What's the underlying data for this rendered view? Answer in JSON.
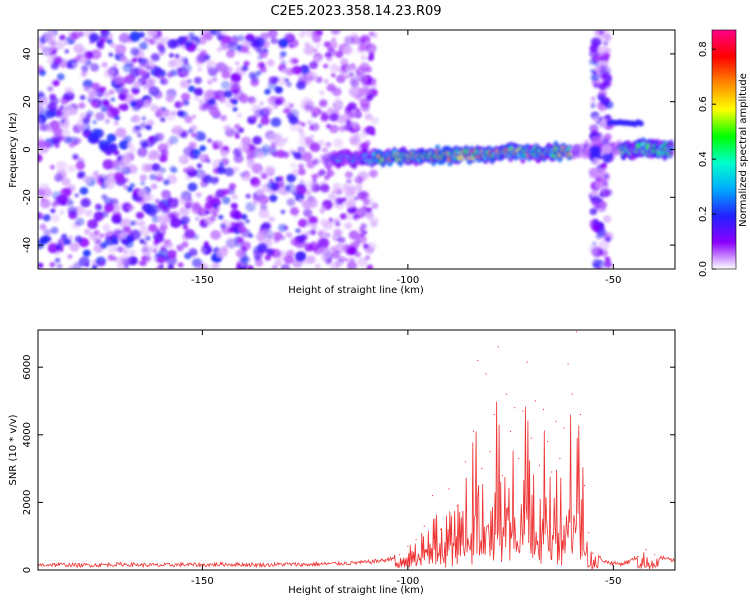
{
  "figure_title": "C2E5.2023.358.14.23.R09",
  "chart_data": [
    {
      "type": "heatmap",
      "xlabel": "Height of straight line (km)",
      "ylabel": "Frequency (Hz)",
      "xlim": [
        -190,
        -35
      ],
      "ylim": [
        -50,
        50
      ],
      "xticks": [
        -150,
        -100,
        -50
      ],
      "yticks": [
        -40,
        -20,
        0,
        20,
        40
      ],
      "colorbar": {
        "label": "Normalized spectral amplitude",
        "range": [
          0,
          0.87
        ],
        "ticks": [
          0.0,
          0.2,
          0.4,
          0.6,
          0.8
        ],
        "colormap": [
          "#ffffff",
          "#8b00ff",
          "#2222ff",
          "#00aaff",
          "#00ffcc",
          "#00ff00",
          "#ffff00",
          "#ff8800",
          "#ff0000",
          "#ff0088"
        ]
      },
      "features": [
        {
          "kind": "noise",
          "x_range": [
            -190,
            -108
          ],
          "y_range": [
            -50,
            50
          ],
          "level": 0.15
        },
        {
          "kind": "band",
          "x_range": [
            -120,
            -36
          ],
          "freq_hz": -3,
          "level": 0.45
        },
        {
          "kind": "band",
          "x_range": [
            -48,
            -36
          ],
          "freq_hz": 0,
          "level": 0.35
        },
        {
          "kind": "vertical_strip",
          "x_range": [
            -55,
            -51
          ],
          "y_range": [
            -50,
            50
          ],
          "level": 0.15
        },
        {
          "kind": "blob",
          "x": -47,
          "freq_hz": 11,
          "level": 0.18
        }
      ]
    },
    {
      "type": "line",
      "xlabel": "Height of straight line (km)",
      "ylabel": "SNR (10 * v/v)",
      "xlim": [
        -190,
        -35
      ],
      "ylim": [
        0,
        7100
      ],
      "xticks": [
        -150,
        -100,
        -50
      ],
      "yticks": [
        0,
        2000,
        4000,
        6000
      ],
      "color": "#ee3333",
      "x": [
        -190,
        -185,
        -180,
        -175,
        -170,
        -165,
        -160,
        -155,
        -150,
        -145,
        -140,
        -135,
        -130,
        -125,
        -120,
        -115,
        -110,
        -105,
        -102,
        -100,
        -98,
        -96,
        -94,
        -92,
        -90,
        -88,
        -86,
        -84,
        -83,
        -82,
        -81,
        -80,
        -79,
        -78,
        -77,
        -76,
        -75,
        -74,
        -73,
        -72,
        -71,
        -70,
        -69,
        -68,
        -67,
        -66,
        -65,
        -64,
        -63,
        -62,
        -61,
        -60,
        -59,
        -58,
        -57,
        -56,
        -55,
        -52,
        -50,
        -48,
        -46,
        -44,
        -42,
        -40,
        -38,
        -36,
        -35
      ],
      "y": [
        150,
        160,
        140,
        150,
        170,
        150,
        140,
        160,
        150,
        170,
        160,
        150,
        170,
        160,
        180,
        200,
        230,
        300,
        450,
        700,
        900,
        1300,
        2200,
        1200,
        2400,
        1900,
        3200,
        4100,
        6200,
        3000,
        5800,
        3500,
        4600,
        6600,
        2800,
        5200,
        4100,
        4800,
        3300,
        4700,
        6150,
        3900,
        5000,
        3100,
        4750,
        3800,
        2900,
        4400,
        3300,
        4200,
        6100,
        5200,
        7050,
        4600,
        2500,
        1100,
        500,
        250,
        200,
        180,
        260,
        400,
        600,
        450,
        350,
        300,
        250
      ]
    }
  ]
}
